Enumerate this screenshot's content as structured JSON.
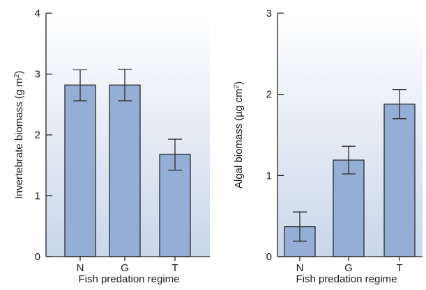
{
  "chart_data": [
    {
      "type": "bar",
      "categories": [
        "N",
        "G",
        "T"
      ],
      "values": [
        2.82,
        2.82,
        1.68
      ],
      "error_low": [
        2.56,
        2.56,
        1.42
      ],
      "error_high": [
        3.07,
        3.08,
        1.93
      ],
      "ylim": [
        0,
        4
      ],
      "yticks": [
        "0",
        "1",
        "2",
        "3",
        "4"
      ],
      "ylabel_parts": [
        "Invertebrate biomass (g m",
        "2",
        ")"
      ],
      "xlabel": "Fish predation regime",
      "grid": false
    },
    {
      "type": "bar",
      "categories": [
        "N",
        "G",
        "T"
      ],
      "values": [
        0.37,
        1.19,
        1.88
      ],
      "error_low": [
        0.19,
        1.02,
        1.7
      ],
      "error_high": [
        0.55,
        1.36,
        2.06
      ],
      "ylim": [
        0,
        3
      ],
      "yticks": [
        "0",
        "1",
        "2",
        "3"
      ],
      "ylabel_parts": [
        "Algal biomass (µg cm",
        "2",
        ")"
      ],
      "xlabel": "Fish predation regime",
      "grid": false
    }
  ],
  "colors": {
    "bar_fill": "#94aed6",
    "bar_stroke": "#2b2b2b",
    "panel_gradient_top": "#ffffff",
    "panel_gradient_bottom": "#c9d7ea",
    "axis": "#222222"
  }
}
